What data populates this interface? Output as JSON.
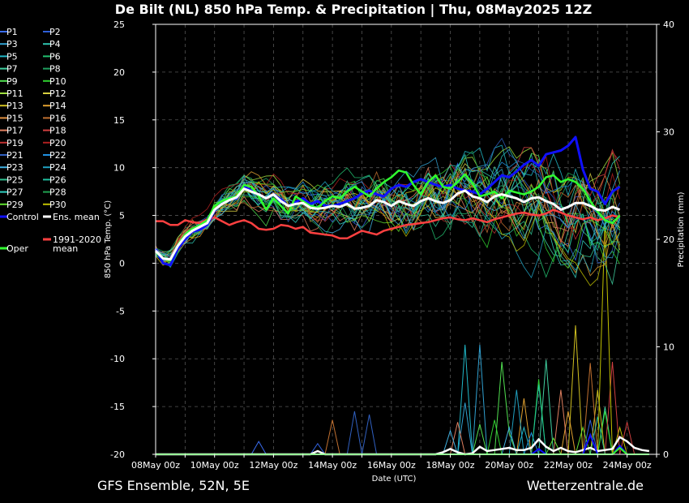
{
  "chart_data": {
    "type": "line",
    "title": "De Bilt  (NL)  850 hPa Temp. & Precipitation | Thu, 08May2025 12Z",
    "xlabel": "Date (UTC)",
    "ylabel": "850 hPa Temp. (°C)",
    "y2label": "Precipitation (mm)",
    "ylim": [
      -20,
      25
    ],
    "y2lim": [
      0,
      40
    ],
    "y_ticks": [
      "-20",
      "-15",
      "-10",
      "-5",
      "0",
      "5",
      "10",
      "15",
      "20",
      "25"
    ],
    "y2_ticks": [
      "0",
      "10",
      "20",
      "30",
      "40"
    ],
    "x_ticks": [
      "08May 00z",
      "10May 00z",
      "12May 00z",
      "14May 00z",
      "16May 00z",
      "18May 00z",
      "20May 00z",
      "22May 00z",
      "24May 00z"
    ],
    "grid": true,
    "x_step_hours": 6,
    "ensemble_members": [
      "P1",
      "P2",
      "P3",
      "P4",
      "P5",
      "P6",
      "P7",
      "P8",
      "P9",
      "P10",
      "P11",
      "P12",
      "P13",
      "P14",
      "P15",
      "P16",
      "P17",
      "P18",
      "P19",
      "P20",
      "P21",
      "P22",
      "P23",
      "P24",
      "P25",
      "P26",
      "P27",
      "P28",
      "P29",
      "P30"
    ],
    "member_colors": [
      "#3a6df0",
      "#2f5fd8",
      "#30a0d0",
      "#2ec4b0",
      "#20b8c8",
      "#22c070",
      "#40d0a0",
      "#20a060",
      "#50e050",
      "#30d030",
      "#a0e040",
      "#d8d040",
      "#d0c020",
      "#e0a030",
      "#e09040",
      "#c07030",
      "#e08060",
      "#d04040",
      "#c03030",
      "#b02020",
      "#3060c0",
      "#2090e0",
      "#40b0e0",
      "#20a0c0",
      "#30c090",
      "#20c0a0",
      "#30d0c0",
      "#20a050",
      "#60e030",
      "#c0c000"
    ],
    "series": [
      {
        "name": "Control",
        "color": "#1010ff",
        "width": 3,
        "values": [
          1.5,
          0.0,
          -0.2,
          1.5,
          2.5,
          3.3,
          3.5,
          4.0,
          5.5,
          6.3,
          6.7,
          6.8,
          8.0,
          7.6,
          7.2,
          6.8,
          7.2,
          6.7,
          6.0,
          6.4,
          6.8,
          6.2,
          6.5,
          6.0,
          6.0,
          6.2,
          6.5,
          6.8,
          7.3,
          7.6,
          7.2,
          7.0,
          7.8,
          8.2,
          8.0,
          8.5,
          8.8,
          8.5,
          8.2,
          8.0,
          8.2,
          7.8,
          7.6,
          7.5,
          7.2,
          7.8,
          8.5,
          9.2,
          9.0,
          9.6,
          10.3,
          10.8,
          10.2,
          11.4,
          11.6,
          11.8,
          12.3,
          13.2,
          9.8,
          7.8,
          7.5,
          6.2,
          7.5,
          8.0
        ]
      },
      {
        "name": "Oper",
        "color": "#30ff30",
        "width": 2.5,
        "values": [
          1.2,
          0.5,
          0.3,
          1.8,
          3.0,
          3.6,
          4.0,
          4.5,
          6.0,
          6.5,
          6.8,
          7.0,
          8.2,
          8.0,
          7.0,
          5.6,
          6.8,
          6.0,
          5.2,
          7.0,
          6.5,
          6.0,
          5.8,
          6.5,
          7.0,
          6.8,
          7.5,
          8.0,
          7.5,
          7.0,
          7.8,
          8.5,
          9.0,
          9.7,
          9.5,
          8.2,
          7.2,
          8.5,
          9.2,
          8.0,
          7.8,
          8.5,
          9.3,
          8.4,
          7.0,
          7.2,
          7.5,
          6.8,
          7.6,
          7.4,
          7.2,
          7.5,
          8.0,
          9.0,
          9.2,
          8.5,
          8.8,
          8.5,
          7.8,
          6.5,
          5.4,
          4.5,
          4.2,
          5.0
        ]
      },
      {
        "name": "Ens. mean",
        "color": "#ffffff",
        "width": 3,
        "values": [
          1.3,
          0.5,
          0.4,
          1.8,
          2.8,
          3.4,
          3.8,
          4.2,
          5.6,
          6.2,
          6.6,
          6.9,
          7.8,
          7.5,
          7.2,
          6.8,
          7.2,
          6.5,
          6.0,
          6.2,
          6.3,
          5.8,
          5.7,
          5.8,
          6.0,
          5.9,
          6.2,
          5.7,
          5.8,
          6.0,
          6.6,
          6.4,
          6.0,
          6.5,
          6.2,
          6.0,
          6.5,
          6.8,
          6.5,
          6.3,
          6.6,
          7.3,
          7.6,
          7.0,
          6.8,
          6.4,
          7.0,
          7.2,
          7.0,
          6.8,
          6.4,
          6.8,
          6.9,
          6.5,
          6.2,
          5.6,
          5.9,
          6.3,
          6.3,
          6.0,
          5.6,
          5.5,
          5.9,
          5.6
        ]
      },
      {
        "name": "1991-2020 mean",
        "color": "#ff4040",
        "width": 2.5,
        "values": [
          4.4,
          4.4,
          4.0,
          4.0,
          4.5,
          4.3,
          4.2,
          4.6,
          4.8,
          4.4,
          4.0,
          4.3,
          4.5,
          4.2,
          3.6,
          3.5,
          3.6,
          4.0,
          3.9,
          3.6,
          3.8,
          3.2,
          3.1,
          3.0,
          2.9,
          2.6,
          2.6,
          3.0,
          3.4,
          3.2,
          3.0,
          3.4,
          3.6,
          3.8,
          4.0,
          4.1,
          4.2,
          4.3,
          4.5,
          4.7,
          4.8,
          4.6,
          4.5,
          4.7,
          4.5,
          4.3,
          4.6,
          4.8,
          5.0,
          5.2,
          5.3,
          5.1,
          5.0,
          5.2,
          5.6,
          5.3,
          5.0,
          4.8,
          4.6,
          4.8,
          4.5,
          4.7,
          5.0,
          4.8
        ]
      }
    ],
    "precip_series": [
      {
        "name": "Ens. mean",
        "color": "#ffffff",
        "values": [
          0,
          0,
          0,
          0,
          0,
          0,
          0,
          0,
          0,
          0,
          0,
          0,
          0,
          0,
          0,
          0,
          0,
          0,
          0,
          0,
          0,
          0,
          0.3,
          0,
          0,
          0,
          0,
          0,
          0,
          0,
          0,
          0,
          0,
          0,
          0,
          0,
          0,
          0,
          0,
          0.2,
          0.5,
          0.2,
          0,
          0.1,
          0.7,
          0.3,
          0.4,
          0.5,
          0.6,
          0.4,
          0.4,
          0.6,
          1.4,
          0.7,
          0.3,
          0.6,
          0.3,
          0.2,
          0.4,
          0.6,
          0.3,
          0.4,
          0.5,
          1.6,
          1.2,
          0.6,
          0.4,
          0.3
        ]
      },
      {
        "name": "Control",
        "color": "#1010ff",
        "values": [
          0,
          0,
          0,
          0,
          0,
          0,
          0,
          0,
          0,
          0,
          0,
          0,
          0,
          0,
          0,
          0,
          0,
          0,
          0,
          0,
          0,
          0,
          0,
          0,
          0,
          0,
          0,
          0,
          0,
          0,
          0,
          0,
          0,
          0,
          0,
          0,
          0,
          0,
          0,
          0,
          0,
          0,
          0,
          0,
          0,
          0,
          0,
          0,
          0,
          0,
          0,
          0,
          0.5,
          0,
          0,
          0,
          0,
          0,
          0,
          1.8,
          0,
          0,
          0,
          0.8,
          0,
          0,
          0,
          0
        ]
      },
      {
        "name": "Oper",
        "color": "#30ff30",
        "values": [
          0,
          0,
          0,
          0,
          0,
          0,
          0,
          0,
          0,
          0,
          0,
          0,
          0,
          0,
          0,
          0,
          0,
          0,
          0,
          0,
          0,
          0,
          0,
          0,
          0,
          0,
          0,
          0,
          0,
          0,
          0,
          0,
          0,
          0,
          0,
          0,
          0,
          0,
          0,
          0,
          0,
          0,
          0,
          0,
          0,
          0,
          0,
          0,
          0,
          0,
          0,
          0,
          0,
          0,
          0,
          0,
          0,
          0,
          0,
          0,
          0,
          0,
          0,
          0.6,
          0,
          0,
          0,
          0
        ]
      }
    ],
    "member_precip_peaks": [
      {
        "member": "P1",
        "values": [
          [
            14,
            1.2
          ]
        ]
      },
      {
        "member": "P2",
        "values": [
          [
            22,
            1.0
          ],
          [
            59,
            3.2
          ]
        ]
      },
      {
        "member": "P3",
        "values": [
          [
            42,
            4.8
          ],
          [
            44,
            10.2
          ]
        ]
      },
      {
        "member": "P5",
        "values": [
          [
            42,
            10.2
          ],
          [
            50,
            2.5
          ]
        ]
      },
      {
        "member": "P7",
        "values": [
          [
            53,
            8.8
          ],
          [
            61,
            4.4
          ]
        ]
      },
      {
        "member": "P9",
        "values": [
          [
            44,
            2.8
          ],
          [
            47,
            8.6
          ],
          [
            48,
            2.0
          ]
        ]
      },
      {
        "member": "P10",
        "values": [
          [
            46,
            3.2
          ],
          [
            52,
            7.0
          ],
          [
            61,
            4.0
          ]
        ]
      },
      {
        "member": "P13",
        "values": [
          [
            57,
            12.0
          ],
          [
            60,
            6.0
          ]
        ]
      },
      {
        "member": "P14",
        "values": [
          [
            50,
            5.2
          ],
          [
            56,
            4.0
          ]
        ]
      },
      {
        "member": "P16",
        "values": [
          [
            24,
            3.2
          ],
          [
            59,
            8.5
          ]
        ]
      },
      {
        "member": "P17",
        "values": [
          [
            41,
            3.0
          ],
          [
            55,
            6.0
          ]
        ]
      },
      {
        "member": "P18",
        "values": [
          [
            62,
            8.6
          ],
          [
            64,
            3.0
          ]
        ]
      },
      {
        "member": "P21",
        "values": [
          [
            27,
            4.0
          ],
          [
            29,
            3.7
          ]
        ]
      },
      {
        "member": "P22",
        "values": [
          [
            51,
            2.0
          ]
        ]
      },
      {
        "member": "P23",
        "values": [
          [
            40,
            2.2
          ],
          [
            48,
            2.5
          ]
        ]
      },
      {
        "member": "P24",
        "values": [
          [
            49,
            6.0
          ]
        ]
      },
      {
        "member": "P25",
        "values": [
          [
            60,
            3.5
          ]
        ]
      },
      {
        "member": "P26",
        "values": [
          [
            52,
            6.5
          ]
        ]
      },
      {
        "member": "P29",
        "values": [
          [
            54,
            1.5
          ],
          [
            58,
            2.5
          ]
        ]
      },
      {
        "member": "P30",
        "values": [
          [
            61,
            22.0
          ],
          [
            63,
            2.5
          ]
        ]
      }
    ]
  },
  "footer": {
    "left": "GFS Ensemble, 52N, 5E",
    "right": "Wetterzentrale.de"
  },
  "legend": {
    "members": [
      "P1",
      "P2",
      "P3",
      "P4",
      "P5",
      "P6",
      "P7",
      "P8",
      "P9",
      "P10",
      "P11",
      "P12",
      "P13",
      "P14",
      "P15",
      "P16",
      "P17",
      "P18",
      "P19",
      "P20",
      "P21",
      "P22",
      "P23",
      "P24",
      "P25",
      "P26",
      "P27",
      "P28",
      "P29",
      "P30"
    ],
    "control": "Control",
    "ens_mean": "Ens. mean",
    "clim_line1": "1991-2020",
    "clim_line2": "mean",
    "oper": "Oper"
  }
}
